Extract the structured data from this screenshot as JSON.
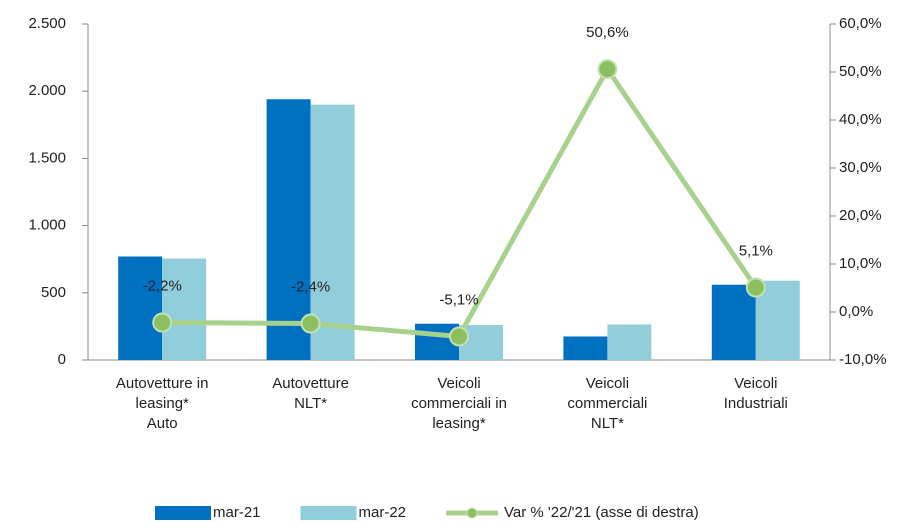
{
  "chart_data": {
    "type": "bar_line",
    "categories": [
      "Autovetture in\nleasing*\nAuto",
      "Autovetture\nNLT*",
      "Veicoli\ncommerciali in\nleasing*",
      "Veicoli\ncommerciali\nNLT*",
      "Veicoli\nIndustriali"
    ],
    "series": [
      {
        "name": "mar-21",
        "color": "#0070c0",
        "values": [
          770,
          1940,
          270,
          175,
          560
        ]
      },
      {
        "name": "mar-22",
        "color": "#92cddc",
        "values": [
          755,
          1900,
          260,
          265,
          590
        ]
      },
      {
        "name": "Var % '22/'21 (asse di destra)",
        "color": "#a9d18e",
        "axis": "y2",
        "values": [
          -2.2,
          -2.4,
          -5.1,
          50.6,
          5.1
        ],
        "value_labels": [
          "-2,2%",
          "-2,4%",
          "-5,1%",
          "50,6%",
          "5,1%"
        ]
      }
    ],
    "ylim": [
      0,
      2500
    ],
    "yticks": [
      0,
      500,
      {
        "value": 1000,
        "label": "1.000"
      },
      {
        "value": 1500,
        "label": "1.500"
      },
      {
        "value": 2000,
        "label": "2.000"
      },
      {
        "value": 2500,
        "label": "2.500"
      }
    ],
    "y2lim": [
      -10,
      60
    ],
    "y2ticks": [
      {
        "value": -10,
        "label": "-10,0%"
      },
      {
        "value": 0,
        "label": "0,0%"
      },
      {
        "value": 10,
        "label": "10,0%"
      },
      {
        "value": 20,
        "label": "20,0%"
      },
      {
        "value": 30,
        "label": "30,0%"
      },
      {
        "value": 40,
        "label": "40,0%"
      },
      {
        "value": 50,
        "label": "50,0%"
      },
      {
        "value": 60,
        "label": "60,0%"
      }
    ],
    "grid": false,
    "legend": "bottom"
  }
}
